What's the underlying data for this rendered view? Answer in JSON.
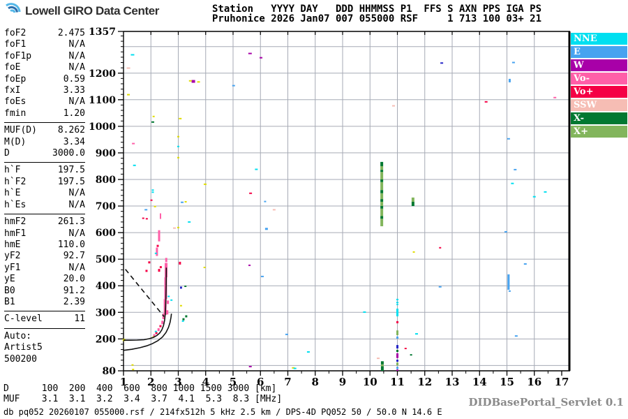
{
  "logo": {
    "text": "Lowell GIRO Data Center"
  },
  "header": {
    "line1": "Station   YYYY DAY   DDD HHMMSS P1  FFS S AXN PPS IGA PS",
    "line2": "Pruhonice 2026 Jan07 007 055000 RSF     1 713 100 03+ 21"
  },
  "sidebar": {
    "rows": [
      {
        "label": "foF2",
        "value": "2.475"
      },
      {
        "label": "foF1",
        "value": "N/A"
      },
      {
        "label": "foF1p",
        "value": "N/A"
      },
      {
        "label": "foE",
        "value": "N/A"
      },
      {
        "label": "foEp",
        "value": "0.59"
      },
      {
        "label": "fxI",
        "value": "3.33"
      },
      {
        "label": "foEs",
        "value": "N/A"
      },
      {
        "label": "fmin",
        "value": "1.20"
      },
      {
        "divider": true
      },
      {
        "label": "MUF(D)",
        "value": "8.262"
      },
      {
        "label": "M(D)",
        "value": "3.34"
      },
      {
        "label": "D",
        "value": "3000.0"
      },
      {
        "divider": true
      },
      {
        "label": "h`F",
        "value": "197.5"
      },
      {
        "label": "h`F2",
        "value": "197.5"
      },
      {
        "label": "h`E",
        "value": "N/A"
      },
      {
        "label": "h`Es",
        "value": "N/A"
      },
      {
        "divider": true
      },
      {
        "label": "hmF2",
        "value": "261.3"
      },
      {
        "label": "hmF1",
        "value": "N/A"
      },
      {
        "label": "hmE",
        "value": "110.0"
      },
      {
        "label": "yF2",
        "value": "92.7"
      },
      {
        "label": "yF1",
        "value": "N/A"
      },
      {
        "label": "yE",
        "value": "20.0"
      },
      {
        "label": "B0",
        "value": "91.2"
      },
      {
        "label": "B1",
        "value": "2.39"
      },
      {
        "divider": true
      },
      {
        "label": "C-level",
        "value": "11"
      },
      {
        "divider": true
      },
      {
        "label": "Auto:",
        "value": ""
      },
      {
        "label": "Artist5",
        "value": ""
      },
      {
        "label": "500200",
        "value": ""
      }
    ]
  },
  "legend": {
    "items": [
      {
        "label": "NNE",
        "color": "#00DFF0"
      },
      {
        "label": "E",
        "color": "#47A3F0"
      },
      {
        "label": "W",
        "color": "#A800A8"
      },
      {
        "label": "Vo-",
        "color": "#FF5FA8"
      },
      {
        "label": "Vo+",
        "color": "#F50045"
      },
      {
        "label": "SSW",
        "color": "#F6BDB4"
      },
      {
        "label": "X-",
        "color": "#017831"
      },
      {
        "label": "X+",
        "color": "#82B55C"
      }
    ]
  },
  "chart_data": {
    "type": "scatter",
    "x_unit": "MHz",
    "y_unit": "km",
    "xlim": [
      1,
      17
    ],
    "ylim": [
      80,
      1357
    ],
    "x_ticks": [
      1,
      2,
      3,
      4,
      5,
      6,
      7,
      8,
      9,
      10,
      11,
      12,
      13,
      14,
      15,
      16,
      17
    ],
    "y_tick_labels": [
      80,
      200,
      300,
      400,
      500,
      600,
      700,
      800,
      900,
      1000,
      1100,
      1200,
      1357
    ],
    "grid": true,
    "legend_position": "top-right-outside",
    "colors": {
      "cyan": "#00DFF0",
      "blue": "#47A3F0",
      "darkblue": "#2525C8",
      "purple": "#A800A8",
      "pink": "#FF5FA8",
      "red": "#F50045",
      "sswpink": "#F6BDB4",
      "darkgreen": "#017831",
      "lightgreen": "#82B55C",
      "yellow": "#E0DC00",
      "trace": "#111111",
      "grid": "#A6AAB5"
    },
    "profile_curves": {
      "o_trace": [
        [
          1.0,
          195
        ],
        [
          1.25,
          195
        ],
        [
          1.5,
          195.5
        ],
        [
          1.75,
          197
        ],
        [
          1.95,
          201
        ],
        [
          2.1,
          206
        ],
        [
          2.22,
          213
        ],
        [
          2.32,
          222
        ],
        [
          2.4,
          234
        ],
        [
          2.46,
          250
        ],
        [
          2.5,
          270
        ],
        [
          2.525,
          295
        ],
        [
          2.54,
          325
        ],
        [
          2.55,
          360
        ],
        [
          2.556,
          395
        ],
        [
          2.561,
          430
        ],
        [
          2.565,
          468
        ]
      ],
      "second_trace": [
        [
          1.0,
          157
        ],
        [
          1.3,
          161
        ],
        [
          1.6,
          167
        ],
        [
          1.85,
          174
        ],
        [
          2.05,
          182
        ],
        [
          2.25,
          193
        ],
        [
          2.42,
          207
        ],
        [
          2.55,
          224
        ],
        [
          2.64,
          243
        ],
        [
          2.7,
          262
        ],
        [
          2.735,
          282
        ],
        [
          2.75,
          295
        ]
      ]
    },
    "muf_line_dashed": [
      [
        1.07,
        462
      ],
      [
        2.48,
        284
      ]
    ],
    "vertical_streaks": [
      {
        "x": 10.43,
        "w": 4,
        "segments": [
          [
            850,
            866,
            "darkgreen"
          ],
          [
            836,
            850,
            "lightgreen"
          ],
          [
            828,
            836,
            "darkgreen"
          ],
          [
            800,
            828,
            "lightgreen"
          ],
          [
            790,
            800,
            "darkgreen"
          ],
          [
            760,
            790,
            "lightgreen"
          ],
          [
            748,
            760,
            "darkgreen"
          ],
          [
            726,
            748,
            "lightgreen"
          ],
          [
            716,
            726,
            "darkgreen"
          ],
          [
            700,
            716,
            "lightgreen"
          ],
          [
            690,
            700,
            "darkgreen"
          ],
          [
            662,
            690,
            "lightgreen"
          ],
          [
            652,
            662,
            "darkgreen"
          ],
          [
            624,
            652,
            "lightgreen"
          ]
        ]
      },
      {
        "x": 11.57,
        "w": 4,
        "segments": [
          [
            716,
            732,
            "lightgreen"
          ],
          [
            700,
            716,
            "darkgreen"
          ]
        ]
      },
      {
        "x": 10.45,
        "w": 4,
        "segments": [
          [
            104,
            116,
            "darkgreen"
          ],
          [
            97,
            104,
            "lightgreen"
          ],
          [
            80,
            97,
            "darkgreen"
          ]
        ]
      },
      {
        "x": 11.0,
        "w": 3,
        "segments": [
          [
            345,
            351,
            "cyan"
          ],
          [
            334,
            340,
            "cyan"
          ],
          [
            327,
            331,
            "cyan"
          ],
          [
            285,
            314,
            "cyan"
          ],
          [
            259,
            267,
            "red"
          ],
          [
            214,
            232,
            "lightgreen"
          ],
          [
            201,
            209,
            "blue"
          ],
          [
            164,
            177,
            "darkblue"
          ],
          [
            151,
            159,
            "darkgreen"
          ],
          [
            128,
            146,
            "purple"
          ],
          [
            114,
            122,
            "darkblue"
          ],
          [
            100,
            111,
            "lightgreen"
          ],
          [
            87,
            95,
            "blue"
          ],
          [
            80,
            85,
            "purple"
          ]
        ]
      },
      {
        "x": 15.06,
        "w": 3,
        "segments": [
          [
            385,
            443,
            "blue"
          ]
        ]
      },
      {
        "x": 2.52,
        "w": 4,
        "segments": [
          [
            290,
            350,
            "pink"
          ]
        ]
      },
      {
        "x": 2.54,
        "w": 4,
        "segments": [
          [
            350,
            432,
            "pink"
          ]
        ]
      },
      {
        "x": 2.555,
        "w": 4,
        "segments": [
          [
            432,
            486,
            "pink"
          ]
        ]
      }
    ],
    "echo_points": [
      [
        1.33,
        1269,
        "cyan",
        5,
        2
      ],
      [
        1.18,
        1219,
        "sswpink",
        5,
        2
      ],
      [
        5.62,
        1274,
        "purple",
        5,
        2
      ],
      [
        6.02,
        1258,
        "purple",
        4,
        2
      ],
      [
        3.55,
        1169,
        "purple",
        5,
        4
      ],
      [
        3.44,
        1171,
        "yellow",
        4,
        2
      ],
      [
        3.74,
        1167,
        "yellow",
        4,
        2
      ],
      [
        5.02,
        1153,
        "blue",
        4,
        2
      ],
      [
        1.18,
        1119,
        "yellow",
        4,
        2
      ],
      [
        12.62,
        1238,
        "darkblue",
        4,
        2
      ],
      [
        15.24,
        1240,
        "blue",
        4,
        2
      ],
      [
        15.1,
        1172,
        "blue",
        3,
        5
      ],
      [
        10.86,
        1077,
        "sswpink",
        4,
        2
      ],
      [
        2.1,
        1037,
        "yellow",
        3,
        2
      ],
      [
        2.07,
        1016,
        "darkgreen",
        4,
        2
      ],
      [
        3.07,
        1029,
        "yellow",
        4,
        2
      ],
      [
        3.0,
        961,
        "yellow",
        3,
        2
      ],
      [
        1.36,
        935,
        "pink",
        4,
        2
      ],
      [
        3.0,
        924,
        "cyan",
        3,
        2
      ],
      [
        3.0,
        882,
        "yellow",
        3,
        2
      ],
      [
        1.4,
        853,
        "cyan",
        4,
        2
      ],
      [
        15.06,
        953,
        "blue",
        4,
        2
      ],
      [
        15.3,
        837,
        "blue",
        4,
        2
      ],
      [
        5.85,
        838,
        "cyan",
        4,
        2
      ],
      [
        14.24,
        1092,
        "red",
        4,
        2
      ],
      [
        16.75,
        1108,
        "pink",
        4,
        2
      ],
      [
        3.98,
        782,
        "yellow",
        4,
        2
      ],
      [
        2.07,
        760,
        "cyan",
        3,
        2
      ],
      [
        2.07,
        752,
        "cyan",
        3,
        2
      ],
      [
        2.02,
        722,
        "red",
        3,
        2
      ],
      [
        3.14,
        714,
        "blue",
        4,
        2
      ],
      [
        3.27,
        716,
        "yellow",
        3,
        2
      ],
      [
        5.64,
        748,
        "red",
        4,
        2
      ],
      [
        2.15,
        698,
        "yellow",
        3,
        2
      ],
      [
        6.17,
        717,
        "blue",
        3,
        2
      ],
      [
        1.82,
        686,
        "blue",
        4,
        2
      ],
      [
        1.72,
        654,
        "red",
        3,
        2
      ],
      [
        1.85,
        652,
        "red",
        3,
        2
      ],
      [
        6.5,
        686,
        "sswpink",
        4,
        2
      ],
      [
        3.4,
        640,
        "cyan",
        4,
        2
      ],
      [
        2.86,
        617,
        "sswpink",
        4,
        2
      ],
      [
        3.0,
        619,
        "yellow",
        3,
        2
      ],
      [
        6.22,
        614,
        "blue",
        4,
        3
      ],
      [
        16.0,
        735,
        "cyan",
        4,
        2
      ],
      [
        15.2,
        785,
        "cyan",
        4,
        2
      ],
      [
        16.4,
        753,
        "cyan",
        4,
        2
      ],
      [
        14.96,
        603,
        "blue",
        4,
        2
      ],
      [
        11.6,
        527,
        "yellow",
        3,
        2
      ],
      [
        12.56,
        543,
        "red",
        3,
        2
      ],
      [
        15.67,
        482,
        "blue",
        4,
        2
      ],
      [
        6.07,
        435,
        "blue",
        4,
        2
      ],
      [
        9.8,
        301,
        "cyan",
        4,
        2
      ],
      [
        6.96,
        217,
        "blue",
        4,
        2
      ],
      [
        7.75,
        151,
        "cyan",
        4,
        2
      ],
      [
        5.63,
        96,
        "purple",
        4,
        2
      ],
      [
        7.2,
        91,
        "yellow",
        4,
        2
      ],
      [
        7.26,
        89,
        "cyan",
        4,
        2
      ],
      [
        11.7,
        219,
        "cyan",
        4,
        2
      ],
      [
        15.34,
        211,
        "blue",
        4,
        2
      ],
      [
        12.56,
        396,
        "blue",
        4,
        2
      ],
      [
        15.1,
        380,
        "blue",
        3,
        2
      ],
      [
        3.96,
        469,
        "yellow",
        3,
        2
      ],
      [
        5.6,
        477,
        "purple",
        3,
        2
      ],
      [
        1.02,
        196,
        "yellow",
        4,
        3
      ],
      [
        1.33,
        102,
        "yellow",
        3,
        2
      ],
      [
        1.35,
        85,
        "yellow",
        3,
        2
      ],
      [
        10.3,
        127,
        "sswpink",
        4,
        2
      ],
      [
        11.3,
        164,
        "red",
        3,
        2
      ],
      [
        11.5,
        140,
        "darkgreen",
        3,
        2
      ],
      [
        2.1,
        208,
        "yellow",
        3,
        2
      ],
      [
        2.12,
        214,
        "pink",
        3,
        3
      ],
      [
        2.2,
        222,
        "red",
        3,
        3
      ],
      [
        2.18,
        228,
        "cyan",
        3,
        2
      ],
      [
        2.28,
        235,
        "pink",
        3,
        4
      ],
      [
        2.35,
        248,
        "red",
        3,
        3
      ],
      [
        2.42,
        262,
        "pink",
        3,
        5
      ],
      [
        2.47,
        285,
        "pink",
        4,
        8
      ],
      [
        2.6,
        300,
        "pink",
        3,
        6
      ],
      [
        2.62,
        338,
        "pink",
        3,
        5
      ],
      [
        2.65,
        360,
        "cyan",
        3,
        2
      ],
      [
        2.75,
        346,
        "cyan",
        3,
        2
      ],
      [
        1.84,
        456,
        "red",
        3,
        3
      ],
      [
        1.94,
        488,
        "red",
        3,
        3
      ],
      [
        2.3,
        458,
        "red",
        3,
        4
      ],
      [
        2.36,
        470,
        "red",
        3,
        3
      ],
      [
        3.06,
        485,
        "red",
        3,
        4
      ],
      [
        3.1,
        393,
        "darkblue",
        3,
        3
      ],
      [
        3.26,
        398,
        "darkgreen",
        3,
        2
      ],
      [
        3.29,
        285,
        "darkgreen",
        3,
        3
      ],
      [
        3.19,
        274,
        "darkgreen",
        3,
        3
      ],
      [
        3.17,
        267,
        "cyan",
        3,
        2
      ],
      [
        3.1,
        325,
        "yellow",
        3,
        2
      ],
      [
        2.35,
        662,
        "pink",
        2,
        8
      ],
      [
        2.3,
        588,
        "pink",
        3,
        16
      ],
      [
        2.22,
        528,
        "pink",
        3,
        12
      ],
      [
        2.18,
        522,
        "cyan",
        3,
        2
      ],
      [
        2.25,
        550,
        "red",
        3,
        3
      ],
      [
        2.56,
        497,
        "pink",
        3,
        6
      ]
    ]
  },
  "d_muf_table": {
    "distances_km": [
      100,
      200,
      400,
      600,
      800,
      1000,
      1500,
      3000
    ],
    "muf_mhz": [
      3.1,
      3.1,
      3.2,
      3.4,
      3.7,
      4.1,
      5.3,
      8.3
    ]
  },
  "footer": {
    "d_row": "D      100  200  400  600  800 1000 1500 3000 [km]",
    "muf_row": "MUF    3.1  3.1  3.2  3.4  3.7  4.1  5.3  8.3 [MHz]",
    "status": "db pq052 20260107 055000.rsf / 214fx512h 5 kHz 2.5 km / DPS-4D PQ052 50 / 50.0 N 14.6 E",
    "watermark": "DIDBasePortal_Servlet 0.1"
  }
}
